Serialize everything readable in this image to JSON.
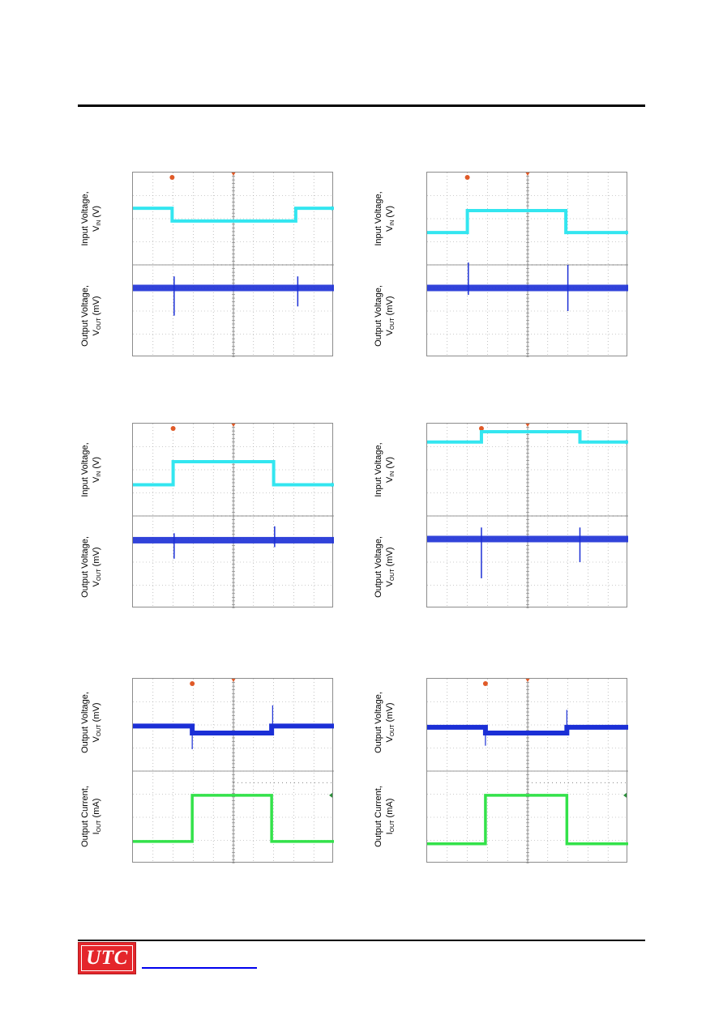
{
  "labels": {
    "input_voltage": "Input Voltage,",
    "vin_sym": "V",
    "vin_sub": "IN",
    "vin_unit": " (V)",
    "output_voltage": "Output Voltage,",
    "vout_sym": "V",
    "vout_sub": "OUT",
    "vout_unit": " (mV)",
    "output_current": "Output Current,",
    "iout_sym": "I",
    "iout_sub": "OUT",
    "iout_unit": " (mA)"
  },
  "logo": {
    "text": "UTC"
  },
  "colors": {
    "vin_trace": "#33e6f0",
    "vout_trace": "#1b2fd6",
    "iout_trace": "#33e24a",
    "grid": "#9a9a9a",
    "trigger_marker": "#e05a28"
  },
  "chart_data": [
    {
      "type": "line",
      "description_id": "line-transient-1",
      "top": {
        "name": "VIN",
        "x": [
          0,
          1.95,
          1.95,
          8.1,
          8.1,
          10
        ],
        "y": [
          1.55,
          1.55,
          2.1,
          2.1,
          1.55,
          1.55
        ]
      },
      "bottom": {
        "name": "VOUT",
        "baseline": 5.0,
        "spikes": [
          {
            "x": 2.05,
            "down": 1.2,
            "up": 0.5
          },
          {
            "x": 8.2,
            "down": 0.8,
            "up": 0.5
          }
        ]
      }
    },
    {
      "type": "line",
      "description_id": "line-transient-2",
      "top": {
        "name": "VIN",
        "x": [
          0,
          2.0,
          2.0,
          6.9,
          6.9,
          10
        ],
        "y": [
          2.6,
          2.6,
          1.65,
          1.65,
          2.6,
          2.6
        ]
      },
      "bottom": {
        "name": "VOUT",
        "baseline": 5.0,
        "spikes": [
          {
            "x": 2.05,
            "down": 0.3,
            "up": 1.1
          },
          {
            "x": 7.0,
            "down": 1.0,
            "up": 1.0
          }
        ]
      }
    },
    {
      "type": "line",
      "description_id": "line-transient-3",
      "top": {
        "name": "VIN",
        "x": [
          0,
          2.0,
          2.0,
          7.0,
          7.0,
          10
        ],
        "y": [
          2.65,
          2.65,
          1.65,
          1.65,
          2.65,
          2.65
        ]
      },
      "bottom": {
        "name": "VOUT",
        "baseline": 5.05,
        "spikes": [
          {
            "x": 2.05,
            "down": 0.8,
            "up": 0.3
          },
          {
            "x": 7.05,
            "down": 0.3,
            "up": 0.6
          }
        ]
      }
    },
    {
      "type": "line",
      "description_id": "line-transient-4",
      "top": {
        "name": "VIN",
        "x": [
          0,
          2.7,
          2.7,
          7.6,
          7.6,
          10
        ],
        "y": [
          0.8,
          0.8,
          0.35,
          0.35,
          0.8,
          0.8
        ]
      },
      "bottom": {
        "name": "VOUT",
        "baseline": 5.0,
        "spikes": [
          {
            "x": 2.7,
            "down": 1.7,
            "up": 0.5
          },
          {
            "x": 7.6,
            "down": 1.0,
            "up": 0.5
          }
        ]
      }
    },
    {
      "type": "line",
      "description_id": "load-transient-1",
      "top": {
        "name": "VOUT",
        "x": [
          0,
          2.95,
          2.95,
          6.9,
          6.9,
          10
        ],
        "y": [
          2.05,
          2.05,
          2.35,
          2.35,
          2.05,
          2.05
        ],
        "spikes": [
          {
            "x": 2.95,
            "down": 1.0,
            "up": 0
          },
          {
            "x": 6.95,
            "down": 0,
            "up": 0.9
          }
        ]
      },
      "bottom": {
        "name": "IOUT",
        "x": [
          0,
          2.95,
          2.95,
          6.9,
          6.9,
          10
        ],
        "y": [
          7.05,
          7.05,
          5.05,
          5.05,
          7.05,
          7.05
        ]
      }
    },
    {
      "type": "line",
      "description_id": "load-transient-2",
      "top": {
        "name": "VOUT",
        "x": [
          0,
          2.9,
          2.9,
          6.95,
          6.95,
          10
        ],
        "y": [
          2.1,
          2.1,
          2.35,
          2.35,
          2.1,
          2.1
        ],
        "spikes": [
          {
            "x": 2.9,
            "down": 0.8,
            "up": 0
          },
          {
            "x": 6.95,
            "down": 0,
            "up": 0.75
          }
        ]
      },
      "bottom": {
        "name": "IOUT",
        "x": [
          0,
          2.9,
          2.9,
          6.95,
          6.95,
          10
        ],
        "y": [
          7.15,
          7.15,
          5.05,
          5.05,
          7.15,
          7.15
        ]
      }
    }
  ]
}
